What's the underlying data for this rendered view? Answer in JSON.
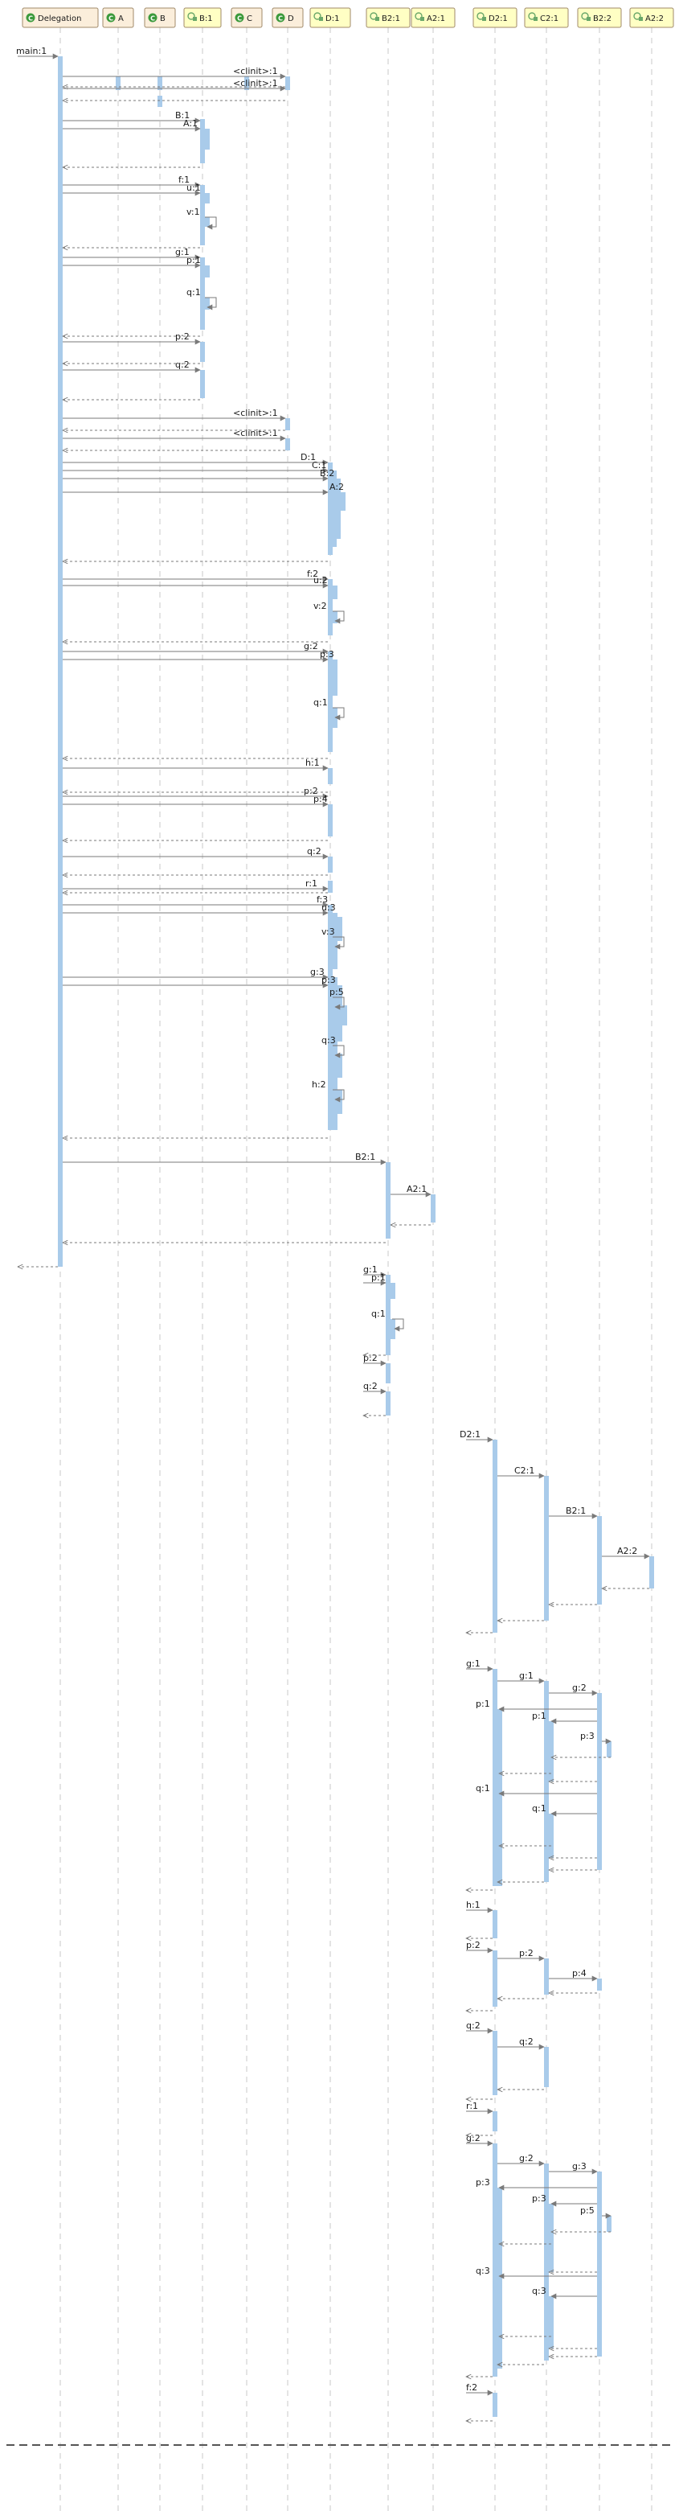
{
  "theme": {
    "activation": "#a9cbea",
    "lifeline": "#c8c8c8",
    "arrow": "#7a7a7a",
    "class_header_fill": "#fbeedb",
    "instance_header_fill": "#ffffc4",
    "class_icon": "#3c9a3c",
    "instance_icon": "#6aa86a"
  },
  "lifelines": [
    {
      "id": "Delegation",
      "label": "Delegation",
      "kind": "class"
    },
    {
      "id": "A",
      "label": "A",
      "kind": "class"
    },
    {
      "id": "B",
      "label": "B",
      "kind": "class"
    },
    {
      "id": "B1",
      "label": "B:1",
      "kind": "instance"
    },
    {
      "id": "C",
      "label": "C",
      "kind": "class"
    },
    {
      "id": "D",
      "label": "D",
      "kind": "class"
    },
    {
      "id": "D1",
      "label": "D:1",
      "kind": "instance"
    },
    {
      "id": "B21",
      "label": "B2:1",
      "kind": "instance"
    },
    {
      "id": "A21",
      "label": "A2:1",
      "kind": "instance"
    },
    {
      "id": "D21",
      "label": "D2:1",
      "kind": "instance"
    },
    {
      "id": "C21",
      "label": "C2:1",
      "kind": "instance"
    },
    {
      "id": "B22",
      "label": "B2:2",
      "kind": "instance"
    },
    {
      "id": "A22",
      "label": "A2:2",
      "kind": "instance"
    }
  ],
  "messages": [
    {
      "label": "main:1"
    },
    {
      "label": "<clinit>:1"
    },
    {
      "label": "<clinit>:1"
    },
    {
      "label": "B:1"
    },
    {
      "label": "A:1"
    },
    {
      "label": "f:1"
    },
    {
      "label": "u:1"
    },
    {
      "label": "v:1"
    },
    {
      "label": "g:1"
    },
    {
      "label": "p:1"
    },
    {
      "label": "q:1"
    },
    {
      "label": "p:2"
    },
    {
      "label": "q:2"
    },
    {
      "label": "<clinit>:1"
    },
    {
      "label": "<clinit>:1"
    },
    {
      "label": "D:1"
    },
    {
      "label": "C:1"
    },
    {
      "label": "B:2"
    },
    {
      "label": "A:2"
    },
    {
      "label": "f:2"
    },
    {
      "label": "u:2"
    },
    {
      "label": "v:2"
    },
    {
      "label": "g:2"
    },
    {
      "label": "p:3"
    },
    {
      "label": "q:1"
    },
    {
      "label": "h:1"
    },
    {
      "label": "p:2"
    },
    {
      "label": "p:4"
    },
    {
      "label": "q:2"
    },
    {
      "label": "r:1"
    },
    {
      "label": "f:3"
    },
    {
      "label": "u:3"
    },
    {
      "label": "v:3"
    },
    {
      "label": "g:3"
    },
    {
      "label": "p:3"
    },
    {
      "label": "p:5"
    },
    {
      "label": "q:3"
    },
    {
      "label": "h:2"
    },
    {
      "label": "B2:1"
    },
    {
      "label": "A2:1"
    },
    {
      "label": "g:1"
    },
    {
      "label": "p:1"
    },
    {
      "label": "q:1"
    },
    {
      "label": "p:2"
    },
    {
      "label": "q:2"
    },
    {
      "label": "D2:1"
    },
    {
      "label": "C2:1"
    },
    {
      "label": "B2:1"
    },
    {
      "label": "A2:2"
    },
    {
      "label": "g:1"
    },
    {
      "label": "g:1"
    },
    {
      "label": "g:2"
    },
    {
      "label": "p:1"
    },
    {
      "label": "p:1"
    },
    {
      "label": "p:3"
    },
    {
      "label": "q:1"
    },
    {
      "label": "q:1"
    },
    {
      "label": "h:1"
    },
    {
      "label": "p:2"
    },
    {
      "label": "p:2"
    },
    {
      "label": "p:4"
    },
    {
      "label": "q:2"
    },
    {
      "label": "q:2"
    },
    {
      "label": "r:1"
    },
    {
      "label": "g:2"
    },
    {
      "label": "g:2"
    },
    {
      "label": "g:3"
    },
    {
      "label": "p:3"
    },
    {
      "label": "p:3"
    },
    {
      "label": "p:5"
    },
    {
      "label": "q:3"
    },
    {
      "label": "q:3"
    },
    {
      "label": "f:2"
    }
  ]
}
